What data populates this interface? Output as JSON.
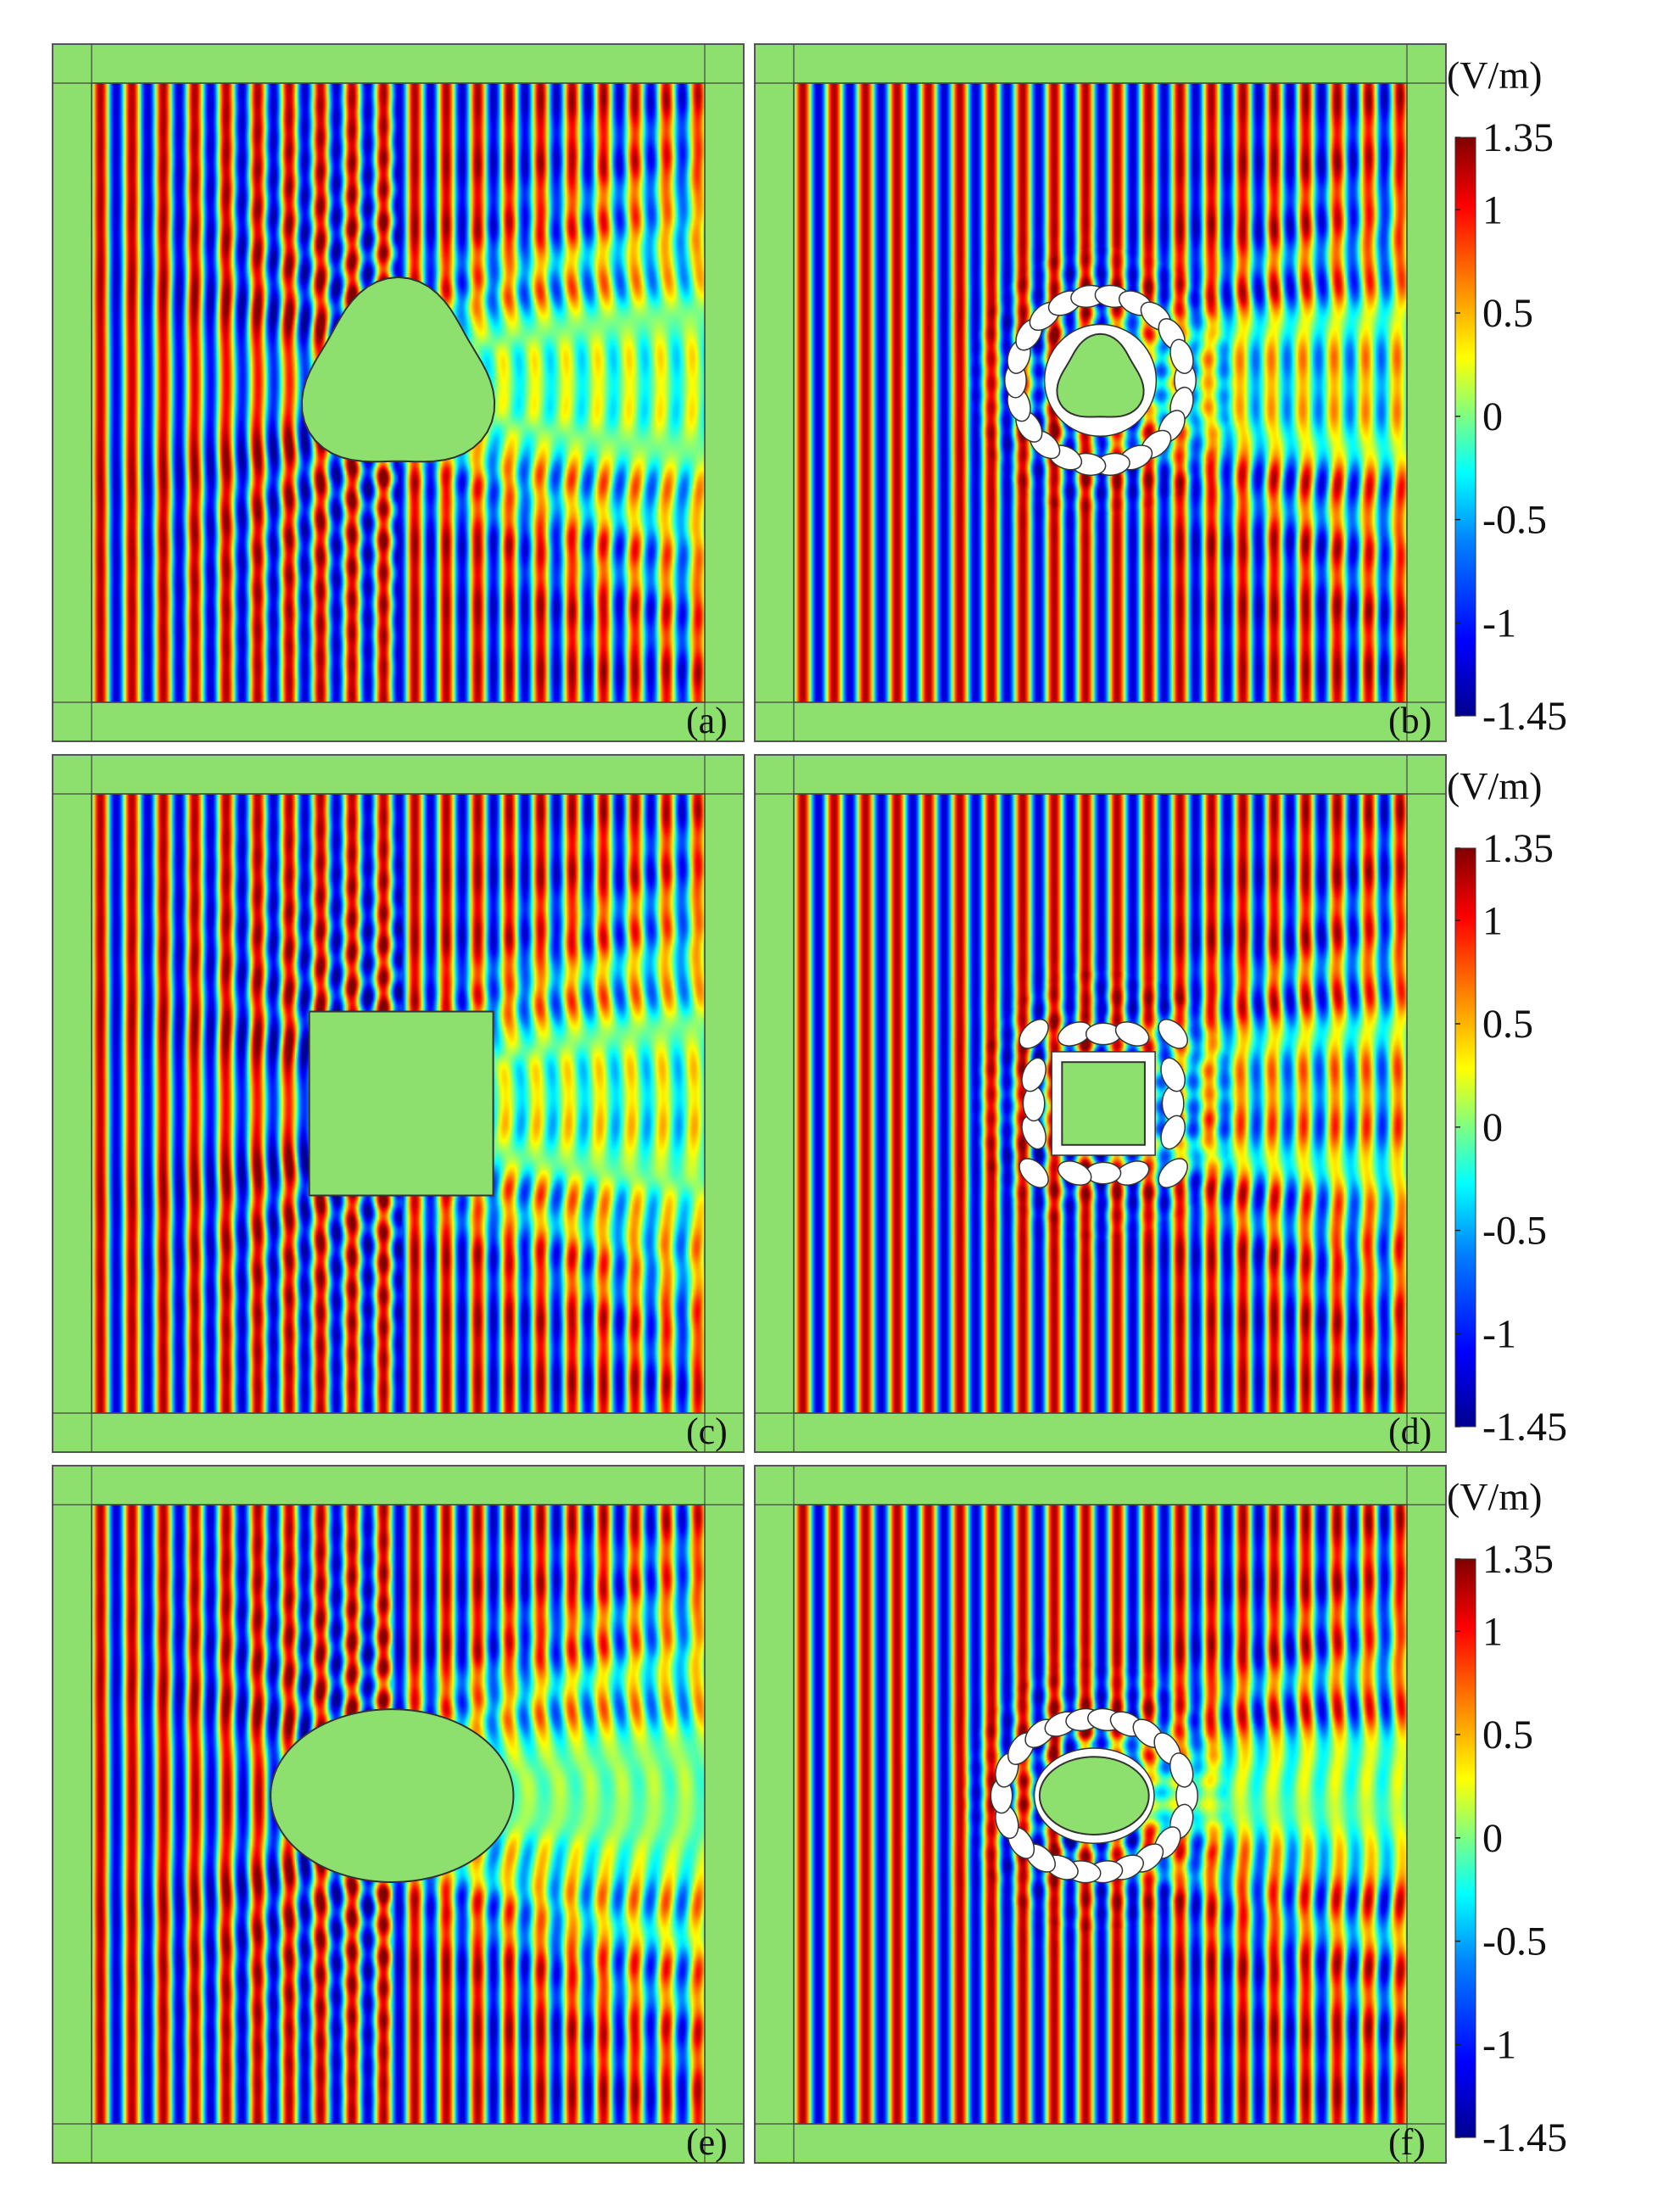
{
  "chart_data": [
    {
      "type": "heatmap",
      "panel_label": "(a)",
      "field": "electric field",
      "scatterer": {
        "shape": "rounded-triangle",
        "cloak": false
      },
      "colorbar": {
        "unit": "(V/m)",
        "min": -1.45,
        "max": 1.35,
        "ticks": [
          "1.35",
          "1",
          "0.5",
          "0",
          "-0.5",
          "-1",
          "-1.45"
        ]
      }
    },
    {
      "type": "heatmap",
      "panel_label": "(b)",
      "field": "electric field",
      "scatterer": {
        "shape": "rounded-triangle",
        "cloak": true
      },
      "colorbar": {
        "unit": "(V/m)",
        "min": -1.45,
        "max": 1.35,
        "ticks": [
          "1.35",
          "1",
          "0.5",
          "0",
          "-0.5",
          "-1",
          "-1.45"
        ]
      }
    },
    {
      "type": "heatmap",
      "panel_label": "(c)",
      "field": "electric field",
      "scatterer": {
        "shape": "square",
        "cloak": false
      },
      "colorbar": {
        "unit": "(V/m)",
        "min": -1.45,
        "max": 1.35,
        "ticks": [
          "1.35",
          "1",
          "0.5",
          "0",
          "-0.5",
          "-1",
          "-1.45"
        ]
      }
    },
    {
      "type": "heatmap",
      "panel_label": "(d)",
      "field": "electric field",
      "scatterer": {
        "shape": "square",
        "cloak": true
      },
      "colorbar": {
        "unit": "(V/m)",
        "min": -1.45,
        "max": 1.35,
        "ticks": [
          "1.35",
          "1",
          "0.5",
          "0",
          "-0.5",
          "-1",
          "-1.45"
        ]
      }
    },
    {
      "type": "heatmap",
      "panel_label": "(e)",
      "field": "electric field",
      "scatterer": {
        "shape": "ellipse",
        "cloak": false
      },
      "colorbar": {
        "unit": "(V/m)",
        "min": -1.45,
        "max": 1.35,
        "ticks": [
          "1.35",
          "1",
          "0.5",
          "0",
          "-0.5",
          "-1",
          "-1.45"
        ]
      }
    },
    {
      "type": "heatmap",
      "panel_label": "(f)",
      "field": "electric field",
      "scatterer": {
        "shape": "ellipse",
        "cloak": true
      },
      "colorbar": {
        "unit": "(V/m)",
        "min": -1.45,
        "max": 1.35,
        "ticks": [
          "1.35",
          "1",
          "0.5",
          "0",
          "-0.5",
          "-1",
          "-1.45"
        ]
      }
    }
  ],
  "colors": {
    "pml": "#8ee06e",
    "frame": "#444444",
    "scale": [
      "#00008f",
      "#0000ff",
      "#0080ff",
      "#00ffff",
      "#80ff80",
      "#ffff00",
      "#ff8000",
      "#ff0000",
      "#800000"
    ]
  }
}
